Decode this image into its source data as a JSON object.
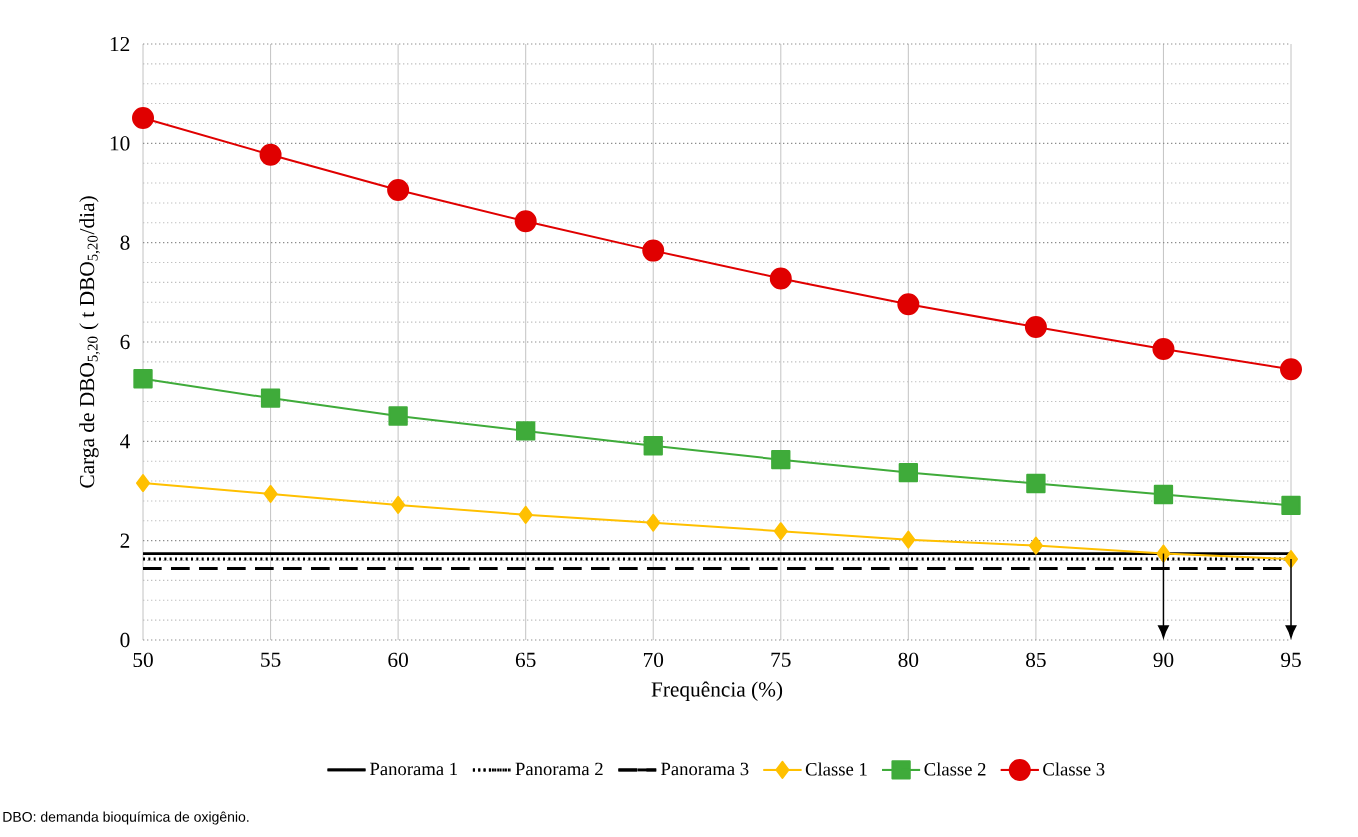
{
  "chart_data": {
    "type": "line",
    "xlabel": "Frequência (%)",
    "ylabel": "Carga de DBO$_{5,20}$ ( t DBO$_{5,20}$/dia)",
    "x": [
      50,
      55,
      60,
      65,
      70,
      75,
      80,
      85,
      90,
      95
    ],
    "series": [
      {
        "name": "Classe 1",
        "color": "#ffc000",
        "marker": "diamond",
        "values": [
          3.16,
          2.94,
          2.72,
          2.52,
          2.36,
          2.19,
          2.02,
          1.9,
          1.74,
          1.63
        ]
      },
      {
        "name": "Classe 2",
        "color": "#3fab3a",
        "marker": "square",
        "values": [
          5.26,
          4.87,
          4.51,
          4.21,
          3.91,
          3.63,
          3.37,
          3.15,
          2.93,
          2.71
        ]
      },
      {
        "name": "Classe 3",
        "color": "#e00000",
        "marker": "circle",
        "values": [
          10.51,
          9.77,
          9.06,
          8.43,
          7.84,
          7.28,
          6.76,
          6.3,
          5.86,
          5.45
        ]
      }
    ],
    "ref_lines": [
      {
        "axis": "y",
        "value": 1.74,
        "label": "Panorama 1",
        "color": "#000000",
        "line_style": "solid"
      },
      {
        "axis": "y",
        "value": 1.63,
        "label": "Panorama 2",
        "color": "#000000",
        "line_style": "dotted"
      },
      {
        "axis": "y",
        "value": 1.44,
        "label": "Panorama 3",
        "color": "#000000",
        "line_style": "dashed"
      }
    ],
    "xlim": [
      50,
      95
    ],
    "xticks": [
      50,
      55,
      60,
      65,
      70,
      75,
      80,
      85,
      90,
      95
    ],
    "ylim": [
      0,
      12
    ],
    "yticks": [
      0,
      2,
      4,
      6,
      8,
      10,
      12
    ],
    "grid": true,
    "legend": "bottom",
    "line_style": "solid",
    "annotations": [
      "DBO: demanda bioquímica de oxigênio."
    ]
  }
}
